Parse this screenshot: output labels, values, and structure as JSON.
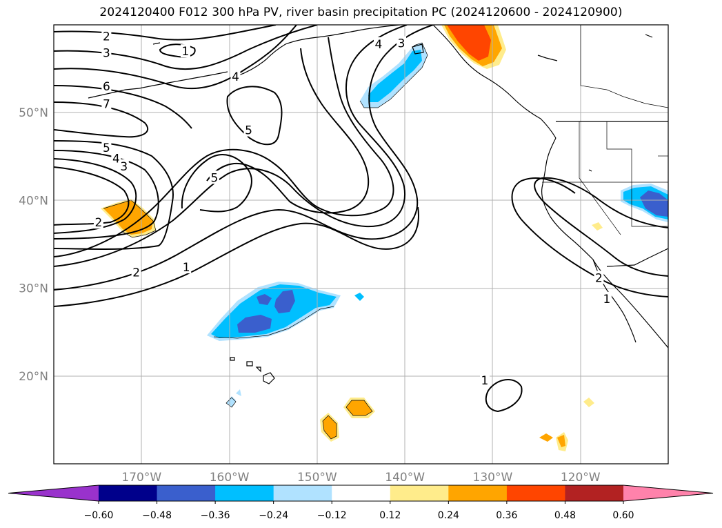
{
  "title": "2024120400 F012 300 hPa PV, river basin precipitation PC (2024120600 - 2024120900)",
  "map": {
    "projection": "PlateCarree",
    "lon_range": [
      -180,
      -110
    ],
    "lat_range": [
      10,
      60
    ],
    "lat_ticks": [
      {
        "value": 20,
        "label": "20°N"
      },
      {
        "value": 30,
        "label": "30°N"
      },
      {
        "value": 40,
        "label": "40°N"
      },
      {
        "value": 50,
        "label": "50°N"
      }
    ],
    "lon_ticks": [
      {
        "value": -170,
        "label": "170°W"
      },
      {
        "value": -160,
        "label": "160°W"
      },
      {
        "value": -150,
        "label": "150°W"
      },
      {
        "value": -140,
        "label": "140°W"
      },
      {
        "value": -130,
        "label": "130°W"
      },
      {
        "value": -120,
        "label": "120°W"
      }
    ],
    "gridlines": true,
    "pv_contour_labels": [
      {
        "text": "2",
        "lon": -174,
        "lat": 58.7
      },
      {
        "text": "1",
        "lon": -165,
        "lat": 57.0
      },
      {
        "text": "3",
        "lon": -174,
        "lat": 56.8
      },
      {
        "text": "4",
        "lon": -143,
        "lat": 57.8
      },
      {
        "text": "3",
        "lon": -140.4,
        "lat": 57.9
      },
      {
        "text": "4",
        "lon": -159.3,
        "lat": 54.1
      },
      {
        "text": "6",
        "lon": -174,
        "lat": 53.0
      },
      {
        "text": "7",
        "lon": -174,
        "lat": 51.0
      },
      {
        "text": "5",
        "lon": -157.8,
        "lat": 48.0
      },
      {
        "text": "5",
        "lon": -174,
        "lat": 46.0
      },
      {
        "text": "4",
        "lon": -172.9,
        "lat": 44.8
      },
      {
        "text": "3",
        "lon": -172,
        "lat": 43.9
      },
      {
        "text": "5",
        "lon": -161.7,
        "lat": 42.6
      },
      {
        "text": "2",
        "lon": -174.9,
        "lat": 37.5
      },
      {
        "text": "2",
        "lon": -170.6,
        "lat": 31.8
      },
      {
        "text": "1",
        "lon": -164.9,
        "lat": 32.4
      },
      {
        "text": "1",
        "lon": -130.9,
        "lat": 19.5
      },
      {
        "text": "2",
        "lon": -117.9,
        "lat": 31.2
      },
      {
        "text": "1",
        "lon": -117.0,
        "lat": 28.8
      }
    ]
  },
  "colorbar": {
    "levels": [
      -0.6,
      -0.48,
      -0.36,
      -0.24,
      -0.12,
      0.12,
      0.24,
      0.36,
      0.48,
      0.6
    ],
    "tick_labels": [
      "−0.60",
      "−0.48",
      "−0.36",
      "−0.24",
      "−0.12",
      "0.12",
      "0.24",
      "0.36",
      "0.48",
      "0.60"
    ],
    "colors": [
      "#9932CC",
      "#00008B",
      "#3A5FCD",
      "#00BFFF",
      "#B0E2FF",
      "#FFFFFF",
      "#FFEC8B",
      "#FFA500",
      "#FF4500",
      "#B22222",
      "#FF82AB"
    ],
    "extend": "both"
  }
}
